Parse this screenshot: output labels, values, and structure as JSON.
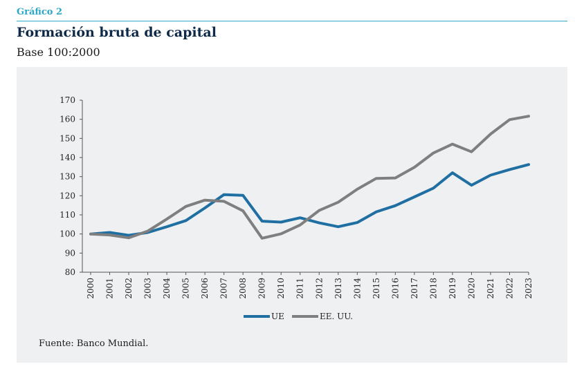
{
  "header": {
    "figure_label": "Gráfico 2",
    "title": "Formación bruta de capital",
    "subtitle": "Base 100:2000"
  },
  "source": "Fuente: Banco Mundial.",
  "colors": {
    "UE": "#1f6fa3",
    "EE. UU.": "#7f7f7f",
    "accent": "#2aa7c9"
  },
  "chart_data": {
    "type": "line",
    "title": "Formación bruta de capital",
    "subtitle": "Base 100:2000",
    "xlabel": "",
    "ylabel": "",
    "ylim": [
      80,
      170
    ],
    "yticks": [
      80,
      90,
      100,
      110,
      120,
      130,
      140,
      150,
      160,
      170
    ],
    "x": [
      "2000",
      "2001",
      "2002",
      "2003",
      "2004",
      "2005",
      "2006",
      "2007",
      "2008",
      "2009",
      "2010",
      "2011",
      "2012",
      "2013",
      "2014",
      "2015",
      "2016",
      "2017",
      "2018",
      "2019",
      "2020",
      "2021",
      "2022",
      "2023"
    ],
    "grid": false,
    "legend_position": "bottom",
    "series": [
      {
        "name": "UE",
        "color": "#1f6fa3",
        "values": [
          100,
          100.8,
          99.3,
          100.8,
          103.8,
          107,
          113.6,
          120.6,
          120.2,
          106.7,
          106.2,
          108.5,
          105.8,
          103.8,
          106,
          111.6,
          114.8,
          119.4,
          124,
          132,
          125.5,
          130.8,
          133.7,
          136.3
        ]
      },
      {
        "name": "EE. UU.",
        "color": "#7f7f7f",
        "values": [
          100,
          99.5,
          98,
          101.5,
          107.8,
          114.4,
          117.7,
          117.1,
          112.1,
          97.8,
          100.1,
          104.7,
          112.3,
          116.6,
          123.4,
          129.1,
          129.3,
          134.9,
          142.4,
          147,
          143,
          152.3,
          159.8,
          161.6
        ]
      }
    ]
  }
}
